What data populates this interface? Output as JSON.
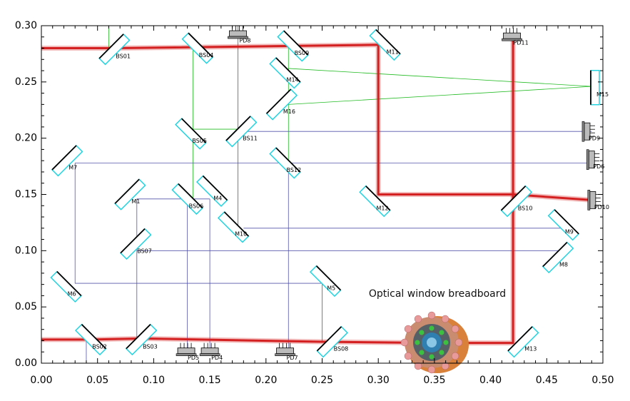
{
  "chart_data": {
    "type": "layout",
    "annotation": "Optical window breadboard",
    "xlim": [
      0,
      0.5
    ],
    "ylim": [
      0,
      0.3
    ],
    "xticks": [
      {
        "value": 0,
        "label": "0.00"
      },
      {
        "value": 0.05,
        "label": "0.05"
      },
      {
        "value": 0.1,
        "label": "0.10"
      },
      {
        "value": 0.15,
        "label": "0.15"
      },
      {
        "value": 0.2,
        "label": "0.20"
      },
      {
        "value": 0.25,
        "label": "0.25"
      },
      {
        "value": 0.3,
        "label": "0.30"
      },
      {
        "value": 0.35,
        "label": "0.35"
      },
      {
        "value": 0.4,
        "label": "0.40"
      },
      {
        "value": 0.45,
        "label": "0.45"
      },
      {
        "value": 0.5,
        "label": "0.50"
      }
    ],
    "yticks": [
      {
        "value": 0,
        "label": "0.00"
      },
      {
        "value": 0.05,
        "label": "0.05"
      },
      {
        "value": 0.1,
        "label": "0.10"
      },
      {
        "value": 0.15,
        "label": "0.15"
      },
      {
        "value": 0.2,
        "label": "0.20"
      },
      {
        "value": 0.25,
        "label": "0.25"
      },
      {
        "value": 0.3,
        "label": "0.30"
      }
    ],
    "main_beams": [
      {
        "color": "#d42020",
        "x": [
          0,
          0.065,
          0.3,
          0.3,
          0.42,
          0.49
        ],
        "y": [
          0.28,
          0.28,
          0.283,
          0.15,
          0.15,
          0.145
        ]
      },
      {
        "color": "#d42020",
        "x": [
          0.42,
          0.42,
          0.35
        ],
        "y": [
          0.29,
          0.018,
          0.018
        ]
      },
      {
        "color": "#d42020",
        "x": [
          0,
          0.045,
          0.09,
          0.25,
          0.35
        ],
        "y": [
          0.021,
          0.021,
          0.022,
          0.019,
          0.018
        ]
      }
    ],
    "aux_beams": [
      {
        "color": "#22bb22",
        "x": [
          0.06,
          0.06
        ],
        "y": [
          0.3,
          0.28
        ]
      },
      {
        "color": "#22bb22",
        "x": [
          0.135,
          0.135
        ],
        "y": [
          0.28,
          0.145
        ]
      },
      {
        "color": "#22bb22",
        "x": [
          0.135,
          0.175
        ],
        "y": [
          0.208,
          0.208
        ]
      },
      {
        "color": "#22bb22",
        "x": [
          0.22,
          0.49
        ],
        "y": [
          0.262,
          0.246
        ]
      },
      {
        "color": "#22bb22",
        "x": [
          0.22,
          0.49
        ],
        "y": [
          0.23,
          0.246
        ]
      },
      {
        "color": "#22bb22",
        "x": [
          0.22,
          0.22
        ],
        "y": [
          0.28,
          0.18
        ]
      },
      {
        "color": "#5555aa",
        "x": [
          0.175,
          0.175
        ],
        "y": [
          0.3,
          0.12
        ]
      },
      {
        "color": "#5555aa",
        "x": [
          0.175,
          0.49
        ],
        "y": [
          0.206,
          0.206
        ]
      },
      {
        "color": "#5555aa",
        "x": [
          0.03,
          0.49
        ],
        "y": [
          0.178,
          0.178
        ]
      },
      {
        "color": "#5555aa",
        "x": [
          0.03,
          0.03,
          0.25,
          0.25
        ],
        "y": [
          0.178,
          0.071,
          0.071,
          0.02
        ]
      },
      {
        "color": "#5555aa",
        "x": [
          0.085,
          0.15
        ],
        "y": [
          0.146,
          0.146
        ]
      },
      {
        "color": "#5555aa",
        "x": [
          0.085,
          0.085
        ],
        "y": [
          0.146,
          0.02
        ]
      },
      {
        "color": "#5555aa",
        "x": [
          0.13,
          0.13
        ],
        "y": [
          0.15,
          0.01
        ]
      },
      {
        "color": "#5555aa",
        "x": [
          0.15,
          0.15
        ],
        "y": [
          0.146,
          0.01
        ]
      },
      {
        "color": "#5555aa",
        "x": [
          0.18,
          0.465
        ],
        "y": [
          0.12,
          0.12
        ]
      },
      {
        "color": "#5555aa",
        "x": [
          0.085,
          0.465
        ],
        "y": [
          0.1,
          0.1
        ]
      },
      {
        "color": "#5555aa",
        "x": [
          0.22,
          0.22
        ],
        "y": [
          0.18,
          0.01
        ]
      },
      {
        "color": "#5555aa",
        "x": [
          0.04,
          0.04
        ],
        "y": [
          0.02,
          0
        ]
      }
    ],
    "components": [
      {
        "label": "BS01",
        "kind": "mirror",
        "x": 0.065,
        "y": 0.279,
        "angle": 45
      },
      {
        "label": "BS04",
        "kind": "mirror",
        "x": 0.139,
        "y": 0.28,
        "angle": -45
      },
      {
        "label": "PD8",
        "kind": "pd",
        "x": 0.175,
        "y": 0.293,
        "angle": 0
      },
      {
        "label": "BS09",
        "kind": "mirror",
        "x": 0.224,
        "y": 0.282,
        "angle": -45
      },
      {
        "label": "M11",
        "kind": "mirror",
        "x": 0.306,
        "y": 0.283,
        "angle": -45
      },
      {
        "label": "PD11",
        "kind": "pd",
        "x": 0.419,
        "y": 0.291,
        "angle": 0
      },
      {
        "label": "M14",
        "kind": "mirror",
        "x": 0.217,
        "y": 0.258,
        "angle": -45
      },
      {
        "label": "M15",
        "kind": "mirror",
        "x": 0.493,
        "y": 0.245,
        "angle": 90
      },
      {
        "label": "M16",
        "kind": "mirror",
        "x": 0.214,
        "y": 0.23,
        "angle": 45
      },
      {
        "label": "BS05",
        "kind": "mirror",
        "x": 0.133,
        "y": 0.204,
        "angle": -45
      },
      {
        "label": "BS11",
        "kind": "mirror",
        "x": 0.178,
        "y": 0.206,
        "angle": 45
      },
      {
        "label": "PD9",
        "kind": "pd",
        "x": 0.486,
        "y": 0.206,
        "angle": 90
      },
      {
        "label": "PD6",
        "kind": "pd",
        "x": 0.49,
        "y": 0.181,
        "angle": 90
      },
      {
        "label": "BS12",
        "kind": "mirror",
        "x": 0.217,
        "y": 0.178,
        "angle": -45
      },
      {
        "label": "M7",
        "kind": "mirror",
        "x": 0.023,
        "y": 0.18,
        "angle": 45
      },
      {
        "label": "BS06",
        "kind": "mirror",
        "x": 0.13,
        "y": 0.146,
        "angle": -45
      },
      {
        "label": "M4",
        "kind": "mirror",
        "x": 0.152,
        "y": 0.153,
        "angle": -45
      },
      {
        "label": "M1",
        "kind": "mirror",
        "x": 0.079,
        "y": 0.15,
        "angle": 45
      },
      {
        "label": "M12",
        "kind": "mirror",
        "x": 0.297,
        "y": 0.144,
        "angle": -45
      },
      {
        "label": "BS10",
        "kind": "mirror",
        "x": 0.423,
        "y": 0.144,
        "angle": 45
      },
      {
        "label": "PD10",
        "kind": "pd",
        "x": 0.491,
        "y": 0.145,
        "angle": 90
      },
      {
        "label": "M9",
        "kind": "mirror",
        "x": 0.465,
        "y": 0.123,
        "angle": -45
      },
      {
        "label": "M10",
        "kind": "mirror",
        "x": 0.171,
        "y": 0.121,
        "angle": -45
      },
      {
        "label": "BS07",
        "kind": "mirror",
        "x": 0.084,
        "y": 0.106,
        "angle": 45
      },
      {
        "label": "M8",
        "kind": "mirror",
        "x": 0.46,
        "y": 0.094,
        "angle": 45
      },
      {
        "label": "M6",
        "kind": "mirror",
        "x": 0.022,
        "y": 0.068,
        "angle": -45
      },
      {
        "label": "M5",
        "kind": "mirror",
        "x": 0.253,
        "y": 0.073,
        "angle": -45
      },
      {
        "label": "BS02",
        "kind": "mirror",
        "x": 0.044,
        "y": 0.021,
        "angle": -45
      },
      {
        "label": "BS03",
        "kind": "mirror",
        "x": 0.089,
        "y": 0.021,
        "angle": 45
      },
      {
        "label": "PD5",
        "kind": "pd",
        "x": 0.129,
        "y": 0.011,
        "angle": 0
      },
      {
        "label": "PD4",
        "kind": "pd",
        "x": 0.15,
        "y": 0.011,
        "angle": 0
      },
      {
        "label": "PD7",
        "kind": "pd",
        "x": 0.217,
        "y": 0.011,
        "angle": 0
      },
      {
        "label": "BS08",
        "kind": "mirror",
        "x": 0.259,
        "y": 0.019,
        "angle": 45
      },
      {
        "label": "M13",
        "kind": "mirror",
        "x": 0.429,
        "y": 0.019,
        "angle": 45
      }
    ]
  }
}
